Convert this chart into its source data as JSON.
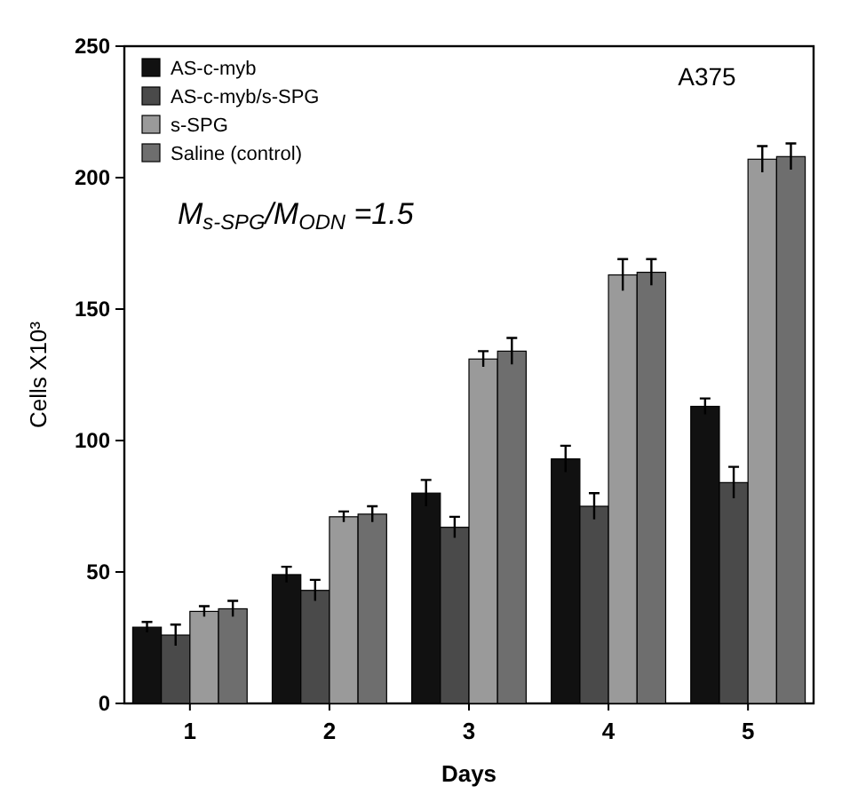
{
  "chart_data": {
    "type": "bar",
    "title": "A375",
    "xlabel": "Days",
    "ylabel": "Cells X10³",
    "categories": [
      "1",
      "2",
      "3",
      "4",
      "5"
    ],
    "series": [
      {
        "name": "AS-c-myb",
        "color": "#111111",
        "values": [
          29,
          49,
          80,
          93,
          113
        ],
        "errors": [
          2,
          3,
          5,
          5,
          3
        ]
      },
      {
        "name": "AS-c-myb/s-SPG",
        "color": "#4a4a4a",
        "values": [
          26,
          43,
          67,
          75,
          84
        ],
        "errors": [
          4,
          4,
          4,
          5,
          6
        ]
      },
      {
        "name": "s-SPG",
        "color": "#9a9a9a",
        "values": [
          35,
          71,
          131,
          163,
          207
        ],
        "errors": [
          2,
          2,
          3,
          6,
          5
        ]
      },
      {
        "name": "Saline (control)",
        "color": "#6e6e6e",
        "values": [
          36,
          72,
          134,
          164,
          208
        ],
        "errors": [
          3,
          3,
          5,
          5,
          5
        ]
      }
    ],
    "annotations": [
      "M$_{s-SPG}$/M$_{ODN}$ =1.5"
    ],
    "ylim": [
      0,
      250
    ],
    "yticks": [
      0,
      50,
      100,
      150,
      200,
      250
    ],
    "grid": false,
    "legend": "top left"
  }
}
